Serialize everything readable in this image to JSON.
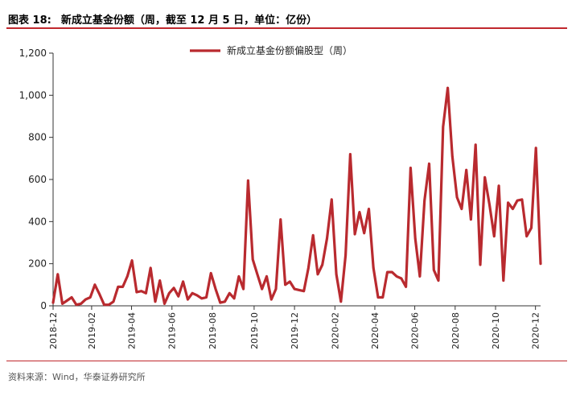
{
  "header": {
    "figure_label": "图表 18:",
    "title_text": "新成立基金份额（周，截至 12 月 5 日，单位：亿份）"
  },
  "footer": {
    "source": "资料来源：Wind，华泰证券研究所"
  },
  "colors": {
    "accent": "#c0282d",
    "line": "#b92a2f",
    "axis": "#333333"
  },
  "chart_data": {
    "type": "line",
    "title": "",
    "xlabel": "",
    "ylabel": "",
    "ylim": [
      0,
      1200
    ],
    "yticks": [
      0,
      200,
      400,
      600,
      800,
      1000,
      1200
    ],
    "ytick_labels": [
      "0",
      "200",
      "400",
      "600",
      "800",
      "1,000",
      "1,200"
    ],
    "xtick_labels": [
      "2018-12",
      "2019-02",
      "2019-04",
      "2019-06",
      "2019-08",
      "2019-10",
      "2019-12",
      "2020-02",
      "2020-04",
      "2020-06",
      "2020-08",
      "2020-10",
      "2020-12"
    ],
    "xtick_week_index": [
      0,
      8.3,
      16.9,
      25.6,
      34.3,
      43.3,
      52.0,
      60.7,
      69.3,
      77.9,
      86.6,
      95.3,
      103.9
    ],
    "grid": false,
    "legend_position": "top",
    "series": [
      {
        "name": "新成立基金份额偏股型（周）",
        "values": [
          15,
          150,
          10,
          25,
          40,
          5,
          10,
          30,
          40,
          100,
          55,
          5,
          5,
          20,
          90,
          90,
          140,
          215,
          65,
          70,
          60,
          180,
          20,
          120,
          10,
          60,
          85,
          45,
          115,
          30,
          60,
          50,
          35,
          40,
          155,
          80,
          15,
          20,
          60,
          35,
          140,
          80,
          595,
          220,
          150,
          80,
          140,
          30,
          80,
          410,
          100,
          115,
          80,
          75,
          70,
          180,
          335,
          150,
          195,
          320,
          505,
          150,
          20,
          240,
          720,
          340,
          445,
          345,
          460,
          180,
          40,
          40,
          160,
          160,
          140,
          130,
          90,
          655,
          320,
          140,
          500,
          675,
          170,
          120,
          850,
          1035,
          710,
          515,
          460,
          645,
          410,
          765,
          195,
          610,
          480,
          330,
          570,
          120,
          490,
          460,
          500,
          505,
          330,
          370,
          750,
          200
        ]
      }
    ]
  }
}
